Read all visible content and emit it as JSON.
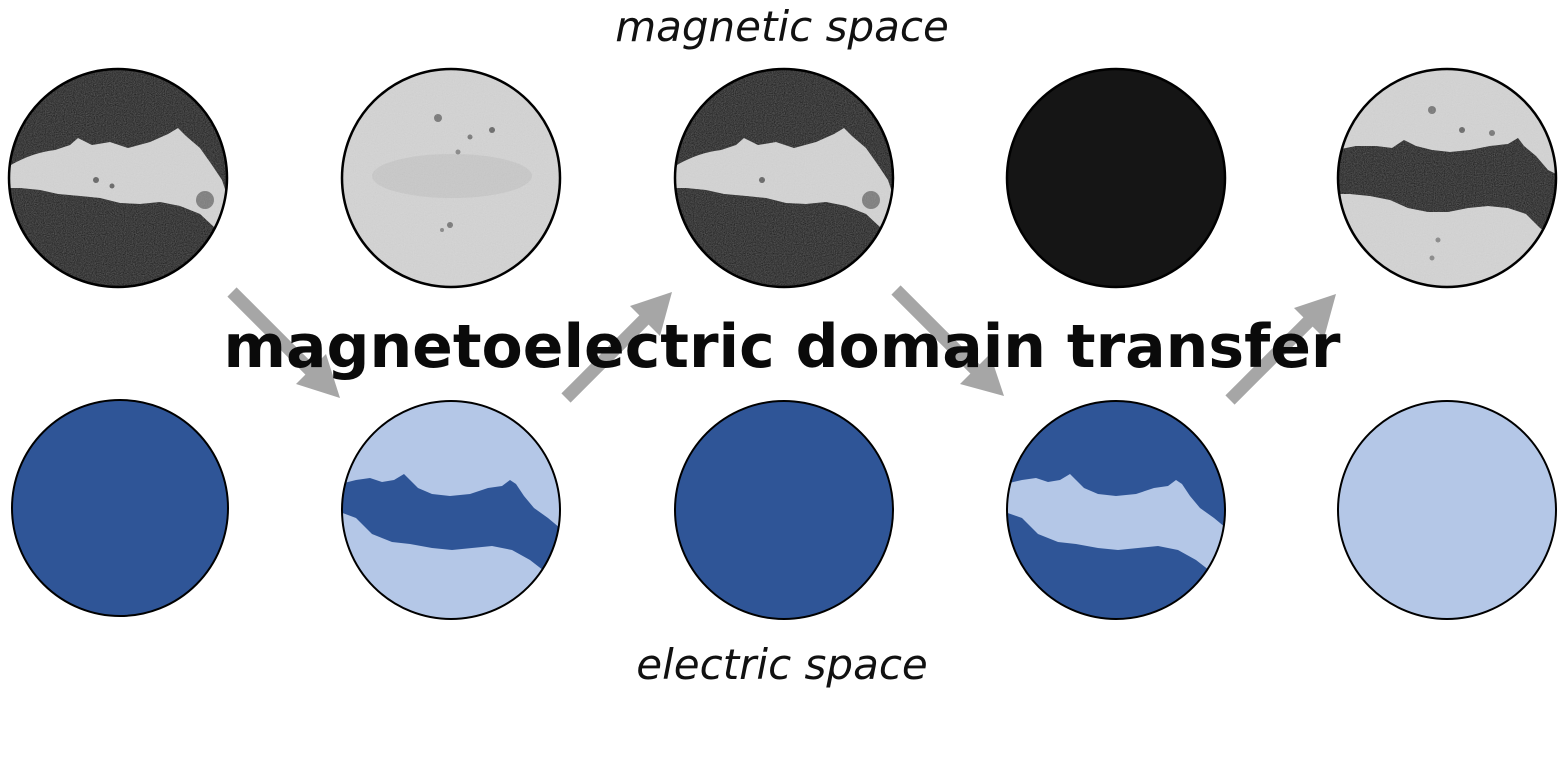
{
  "labels": {
    "top": "magnetic space",
    "bottom": "electric space",
    "center": "magnetoelectric domain transfer"
  },
  "colors": {
    "dark_blue": "#2f5597",
    "light_blue": "#b4c7e7",
    "magnetic_dark": "#151515",
    "magnetic_light": "#d4d4d4",
    "arrow": "#a6a6a6",
    "outline": "#000000"
  },
  "magnetic_states": [
    {
      "name": "magnetic-state-1",
      "pattern": "light-stripe-on-dark"
    },
    {
      "name": "magnetic-state-2",
      "pattern": "uniform-light"
    },
    {
      "name": "magnetic-state-3",
      "pattern": "light-stripe-on-dark"
    },
    {
      "name": "magnetic-state-4",
      "pattern": "uniform-dark"
    },
    {
      "name": "magnetic-state-5",
      "pattern": "dark-stripe-on-light"
    }
  ],
  "electric_states": [
    {
      "name": "electric-state-1",
      "pattern": "uniform-dark-blue"
    },
    {
      "name": "electric-state-2",
      "pattern": "dark-stripe-on-light-blue"
    },
    {
      "name": "electric-state-3",
      "pattern": "uniform-dark-blue"
    },
    {
      "name": "electric-state-4",
      "pattern": "light-stripe-on-dark-blue"
    },
    {
      "name": "electric-state-5",
      "pattern": "uniform-light-blue"
    }
  ],
  "transfer_arrows": [
    {
      "name": "arrow-magnetic-1-to-electric-2",
      "direction": "down-right"
    },
    {
      "name": "arrow-electric-2-to-magnetic-3",
      "direction": "up-right"
    },
    {
      "name": "arrow-magnetic-3-to-electric-4",
      "direction": "down-right"
    },
    {
      "name": "arrow-electric-4-to-magnetic-5",
      "direction": "up-right"
    }
  ]
}
